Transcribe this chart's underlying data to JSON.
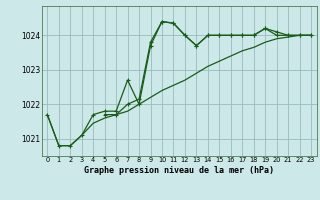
{
  "background_color": "#cce8e8",
  "grid_color": "#99bbbb",
  "line_color": "#1a5c1a",
  "title": "Graphe pression niveau de la mer (hPa)",
  "xlim": [
    -0.5,
    23.5
  ],
  "ylim": [
    1020.5,
    1024.85
  ],
  "yticks": [
    1021,
    1022,
    1023,
    1024
  ],
  "xticks": [
    0,
    1,
    2,
    3,
    4,
    5,
    6,
    7,
    8,
    9,
    10,
    11,
    12,
    13,
    14,
    15,
    16,
    17,
    18,
    19,
    20,
    21,
    22,
    23
  ],
  "line1_x": [
    0,
    1,
    2,
    3,
    4,
    5,
    6,
    7,
    8,
    9,
    10,
    11,
    12,
    13,
    14,
    15,
    16,
    17,
    18,
    19,
    20,
    21,
    22,
    23
  ],
  "line1_y": [
    1021.7,
    1020.8,
    1020.8,
    1021.1,
    1021.7,
    1021.8,
    1021.8,
    1022.7,
    1022.0,
    1023.7,
    1024.4,
    1024.35,
    1024.0,
    1023.7,
    1024.0,
    1024.0,
    1024.0,
    1024.0,
    1024.0,
    1024.2,
    1024.0,
    1024.0,
    1024.0,
    1024.0
  ],
  "line2_x": [
    0,
    1,
    2,
    3,
    4,
    5,
    6,
    7,
    8,
    9,
    10,
    11,
    12,
    13,
    14,
    15,
    16,
    17,
    18,
    19,
    20,
    21,
    22,
    23
  ],
  "line2_y": [
    1021.7,
    1020.8,
    1020.8,
    1021.1,
    1021.45,
    1021.6,
    1021.7,
    1021.8,
    1022.0,
    1022.2,
    1022.4,
    1022.55,
    1022.7,
    1022.9,
    1023.1,
    1023.25,
    1023.4,
    1023.55,
    1023.65,
    1023.8,
    1023.9,
    1023.95,
    1024.0,
    1024.0
  ],
  "line3_x": [
    5,
    6,
    7,
    8,
    9,
    10,
    11,
    12,
    13,
    14,
    15,
    16,
    17,
    18,
    19,
    20,
    21,
    22,
    23
  ],
  "line3_y": [
    1021.7,
    1021.7,
    1022.0,
    1022.15,
    1023.8,
    1024.4,
    1024.35,
    1024.0,
    1023.7,
    1024.0,
    1024.0,
    1024.0,
    1024.0,
    1024.0,
    1024.2,
    1024.1,
    1024.0,
    1024.0,
    1024.0
  ]
}
